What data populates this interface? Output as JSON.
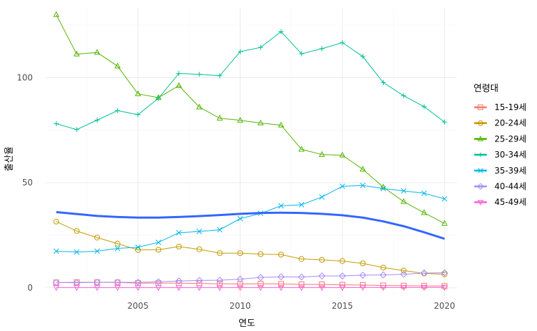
{
  "chart_data": {
    "type": "line",
    "title": "",
    "xlabel": "연도",
    "ylabel": "출산율",
    "xlim": [
      2000.5,
      2020.6
    ],
    "ylim": [
      -5,
      133
    ],
    "x_ticks": [
      2005,
      2010,
      2015,
      2020
    ],
    "y_ticks": [
      0,
      50,
      100
    ],
    "grid": true,
    "legend_position": "right",
    "legend_title": "연령대",
    "x": [
      2001,
      2002,
      2003,
      2004,
      2005,
      2006,
      2007,
      2008,
      2009,
      2010,
      2011,
      2012,
      2013,
      2014,
      2015,
      2016,
      2017,
      2018,
      2019,
      2020
    ],
    "series": [
      {
        "name": "15-19세",
        "color": "#F8766D",
        "marker": "square",
        "values": [
          2.5,
          2.6,
          2.6,
          2.5,
          2.2,
          2.2,
          2.2,
          2.1,
          1.9,
          1.8,
          1.9,
          1.8,
          1.6,
          1.6,
          1.4,
          1.3,
          1.1,
          1.0,
          0.9,
          0.8
        ]
      },
      {
        "name": "20-24세",
        "color": "#C49A00",
        "marker": "circle",
        "values": [
          31.5,
          27.0,
          23.9,
          21.0,
          18.0,
          18.1,
          19.6,
          18.3,
          16.5,
          16.5,
          16.0,
          15.8,
          13.7,
          13.3,
          12.7,
          11.6,
          9.6,
          8.2,
          6.8,
          6.4
        ]
      },
      {
        "name": "25-29세",
        "color": "#53B400",
        "marker": "triangle",
        "values": [
          130,
          111.2,
          112,
          105.5,
          92.3,
          90.5,
          96.2,
          86,
          80.7,
          79.7,
          78.4,
          77.4,
          65.9,
          63.4,
          63.1,
          56.4,
          47.9,
          41,
          35.7,
          30.6
        ]
      },
      {
        "name": "30-34세",
        "color": "#00C094",
        "marker": "plus",
        "values": [
          78.1,
          75.3,
          79.8,
          84.3,
          82.4,
          90.2,
          102,
          101.6,
          100.9,
          112.4,
          114.4,
          121.9,
          111.4,
          113.8,
          116.7,
          110.1,
          97.7,
          91.4,
          86.2,
          78.9
        ]
      },
      {
        "name": "35-39세",
        "color": "#00B6EB",
        "marker": "cross",
        "values": [
          17.4,
          17.0,
          17.4,
          18.7,
          19.3,
          21.6,
          26.2,
          26.8,
          27.6,
          32.9,
          35.4,
          39.0,
          39.5,
          43.2,
          48.3,
          48.7,
          47.2,
          46.1,
          45.0,
          42.3
        ]
      },
      {
        "name": "40-44세",
        "color": "#A58AFF",
        "marker": "diamond",
        "values": [
          2.5,
          2.4,
          2.6,
          2.6,
          2.6,
          2.8,
          3.2,
          3.5,
          3.6,
          4.1,
          4.9,
          5.2,
          5.1,
          5.6,
          5.6,
          6.0,
          6.1,
          6.4,
          7.0,
          7.1
        ]
      },
      {
        "name": "45-49세",
        "color": "#FB61D7",
        "marker": "down-triangle",
        "values": [
          0.1,
          0.1,
          0.1,
          0.1,
          0.1,
          0.1,
          0.1,
          0.1,
          0.1,
          0.1,
          0.1,
          0.1,
          0.1,
          0.1,
          0.1,
          0.2,
          0.2,
          0.2,
          0.2,
          0.2
        ]
      }
    ],
    "smooth_line": {
      "color": "#3366FF",
      "values": [
        36.0,
        35.1,
        34.2,
        33.7,
        33.4,
        33.4,
        33.7,
        34.1,
        34.6,
        35.2,
        35.6,
        35.7,
        35.6,
        35.2,
        34.5,
        33.4,
        31.6,
        29.3,
        26.4,
        23.3
      ]
    }
  }
}
